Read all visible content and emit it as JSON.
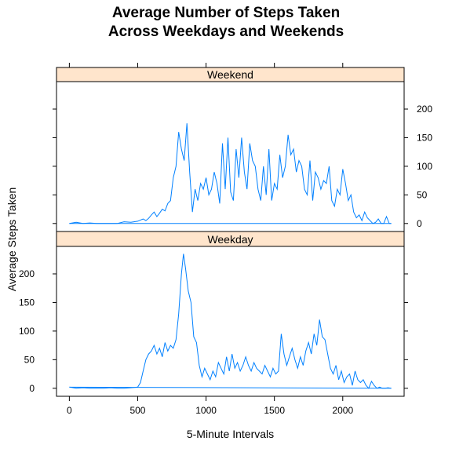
{
  "title_line1": "Average Number of Steps Taken",
  "title_line2": "Across Weekdays and Weekends",
  "chart_data": {
    "type": "line",
    "title": "Average Number of Steps Taken Across Weekdays and Weekends",
    "xlabel": "5-Minute Intervals",
    "ylabel": "Average Steps Taken",
    "xlim": [
      -94,
      2449
    ],
    "ylim": [
      -14,
      248
    ],
    "x_ticks": [
      0,
      500,
      1000,
      1500,
      2000
    ],
    "y_ticks": [
      0,
      50,
      100,
      150,
      200
    ],
    "line_color": "#0080ff",
    "strip_color": "#ffe5cc",
    "panels": [
      {
        "name": "Weekend",
        "x": [
          0,
          50,
          100,
          150,
          200,
          250,
          300,
          350,
          400,
          450,
          500,
          520,
          540,
          560,
          580,
          600,
          620,
          640,
          660,
          680,
          700,
          720,
          740,
          760,
          780,
          800,
          820,
          840,
          860,
          880,
          900,
          920,
          940,
          960,
          980,
          1000,
          1020,
          1040,
          1060,
          1080,
          1100,
          1120,
          1140,
          1160,
          1180,
          1200,
          1220,
          1240,
          1260,
          1280,
          1300,
          1320,
          1340,
          1360,
          1380,
          1400,
          1420,
          1440,
          1460,
          1480,
          1500,
          1520,
          1540,
          1560,
          1580,
          1600,
          1620,
          1640,
          1660,
          1680,
          1700,
          1720,
          1740,
          1760,
          1780,
          1800,
          1820,
          1840,
          1860,
          1880,
          1900,
          1920,
          1940,
          1960,
          1980,
          2000,
          2020,
          2040,
          2060,
          2080,
          2100,
          2120,
          2140,
          2160,
          2180,
          2200,
          2220,
          2240,
          2260,
          2280,
          2300,
          2320,
          2340,
          2355
        ],
        "y": [
          0,
          2,
          0,
          1,
          0,
          0,
          0,
          0,
          3,
          2,
          4,
          6,
          8,
          5,
          9,
          15,
          20,
          12,
          18,
          25,
          22,
          35,
          40,
          80,
          100,
          160,
          130,
          110,
          175,
          90,
          20,
          60,
          40,
          70,
          60,
          80,
          50,
          60,
          90,
          70,
          35,
          140,
          60,
          150,
          55,
          40,
          130,
          80,
          150,
          90,
          60,
          140,
          110,
          100,
          60,
          40,
          100,
          50,
          130,
          40,
          70,
          60,
          120,
          80,
          100,
          155,
          120,
          130,
          90,
          110,
          100,
          60,
          50,
          110,
          40,
          90,
          80,
          60,
          75,
          70,
          100,
          40,
          30,
          60,
          50,
          95,
          70,
          40,
          50,
          20,
          10,
          15,
          5,
          20,
          10,
          5,
          0,
          2,
          8,
          0,
          0,
          12,
          0,
          0
        ],
        "y_axis_side": "right"
      },
      {
        "name": "Weekday",
        "x": [
          0,
          50,
          100,
          150,
          200,
          250,
          300,
          350,
          400,
          450,
          500,
          520,
          540,
          560,
          580,
          600,
          620,
          640,
          660,
          680,
          700,
          720,
          740,
          760,
          780,
          800,
          820,
          835,
          850,
          870,
          890,
          910,
          930,
          950,
          970,
          990,
          1010,
          1030,
          1050,
          1070,
          1090,
          1110,
          1130,
          1150,
          1170,
          1190,
          1210,
          1230,
          1250,
          1270,
          1290,
          1310,
          1330,
          1350,
          1370,
          1390,
          1410,
          1430,
          1450,
          1470,
          1490,
          1510,
          1530,
          1550,
          1570,
          1590,
          1610,
          1630,
          1650,
          1670,
          1690,
          1710,
          1730,
          1750,
          1770,
          1790,
          1810,
          1830,
          1850,
          1870,
          1890,
          1910,
          1930,
          1950,
          1970,
          1990,
          2010,
          2030,
          2050,
          2070,
          2090,
          2110,
          2130,
          2150,
          2170,
          2190,
          2210,
          2230,
          2250,
          2270,
          2290,
          2310,
          2330,
          2355
        ],
        "y": [
          2,
          0,
          1,
          0,
          0,
          0,
          1,
          0,
          0,
          1,
          2,
          10,
          30,
          50,
          60,
          65,
          75,
          60,
          70,
          55,
          80,
          65,
          75,
          70,
          85,
          130,
          200,
          235,
          210,
          170,
          150,
          90,
          80,
          40,
          20,
          35,
          25,
          15,
          30,
          20,
          45,
          35,
          25,
          55,
          30,
          60,
          35,
          45,
          30,
          40,
          55,
          40,
          30,
          45,
          35,
          30,
          25,
          40,
          30,
          20,
          35,
          25,
          30,
          95,
          60,
          40,
          55,
          70,
          50,
          35,
          55,
          40,
          65,
          80,
          60,
          95,
          75,
          120,
          90,
          85,
          60,
          35,
          25,
          40,
          15,
          30,
          10,
          20,
          25,
          5,
          30,
          15,
          10,
          15,
          5,
          0,
          12,
          5,
          0,
          2,
          0,
          0,
          1,
          0
        ],
        "y_axis_side": "left"
      }
    ]
  }
}
